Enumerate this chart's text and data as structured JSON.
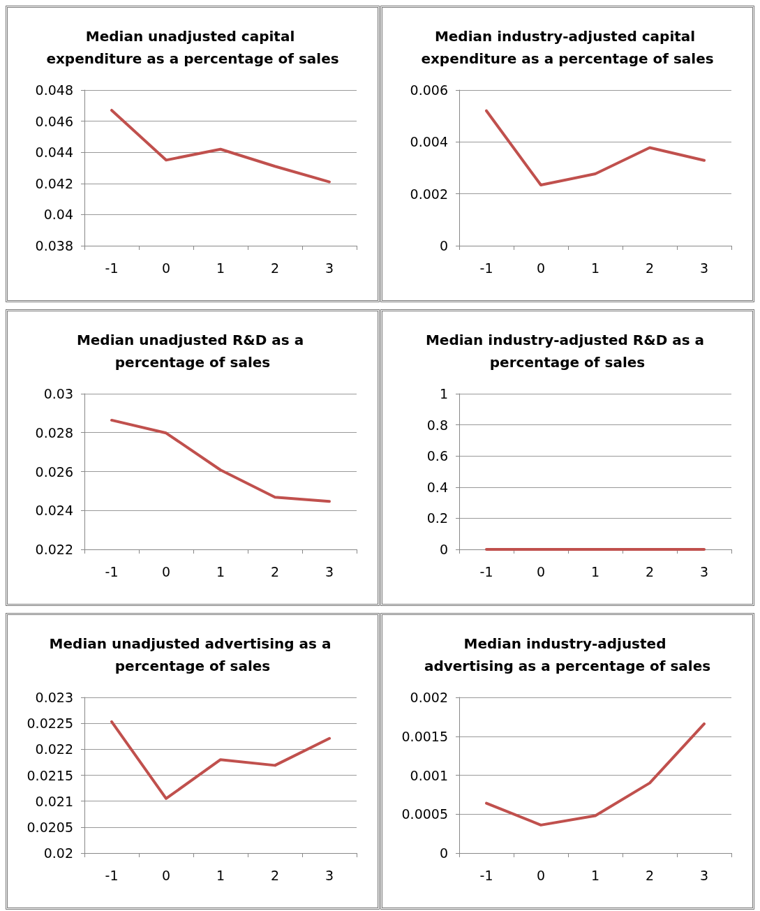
{
  "chart_data": [
    {
      "type": "line",
      "title": "Median unadjusted capital expenditure as a percentage of sales",
      "categories": [
        "-1",
        "0",
        "1",
        "2",
        "3"
      ],
      "series": [
        {
          "color": "#c0504d",
          "values": [
            0.0467,
            0.0435,
            0.0442,
            0.0431,
            0.0421
          ]
        }
      ],
      "ylim": [
        0.038,
        0.048
      ],
      "yticks": [
        0.038,
        0.04,
        0.042,
        0.044,
        0.046,
        0.048
      ],
      "grid": "y",
      "marker": "none",
      "line_style": "solid"
    },
    {
      "type": "line",
      "title": "Median industry-adjusted capital expenditure as a percentage of sales",
      "categories": [
        "-1",
        "0",
        "1",
        "2",
        "3"
      ],
      "series": [
        {
          "color": "#c0504d",
          "values": [
            0.0052,
            0.00234,
            0.00277,
            0.00378,
            0.00329
          ]
        }
      ],
      "ylim": [
        0,
        0.006
      ],
      "yticks": [
        0,
        0.002,
        0.004,
        0.006
      ],
      "grid": "y",
      "marker": "none",
      "line_style": "solid"
    },
    {
      "type": "line",
      "title": "Median unadjusted R&D as a percentage of sales",
      "categories": [
        "-1",
        "0",
        "1",
        "2",
        "3"
      ],
      "series": [
        {
          "color": "#c0504d",
          "values": [
            0.02864,
            0.02798,
            0.02608,
            0.02468,
            0.02447
          ]
        }
      ],
      "ylim": [
        0.022,
        0.03
      ],
      "yticks": [
        0.022,
        0.024,
        0.026,
        0.028,
        0.03
      ],
      "grid": "y",
      "marker": "none",
      "line_style": "solid"
    },
    {
      "type": "line",
      "title": "Median industry-adjusted R&D as a percentage of sales",
      "categories": [
        "-1",
        "0",
        "1",
        "2",
        "3"
      ],
      "series": [
        {
          "color": "#c0504d",
          "values": [
            0,
            0,
            0,
            0,
            0
          ]
        }
      ],
      "ylim": [
        0,
        1
      ],
      "yticks": [
        0,
        0.2,
        0.4,
        0.6,
        0.8,
        1
      ],
      "grid": "y",
      "marker": "none",
      "line_style": "solid"
    },
    {
      "type": "line",
      "title": "Median unadjusted advertising as a percentage of sales",
      "categories": [
        "-1",
        "0",
        "1",
        "2",
        "3"
      ],
      "series": [
        {
          "color": "#c0504d",
          "values": [
            0.02253,
            0.02105,
            0.0218,
            0.02169,
            0.02221
          ]
        }
      ],
      "ylim": [
        0.02,
        0.023
      ],
      "yticks": [
        0.02,
        0.0205,
        0.021,
        0.0215,
        0.022,
        0.0225,
        0.023
      ],
      "grid": "y",
      "marker": "none",
      "line_style": "solid"
    },
    {
      "type": "line",
      "title": "Median industry-adjusted advertising as a percentage of sales",
      "categories": [
        "-1",
        "0",
        "1",
        "2",
        "3"
      ],
      "series": [
        {
          "color": "#c0504d",
          "values": [
            0.00064,
            0.00036,
            0.00048,
            0.0009,
            0.00166
          ]
        }
      ],
      "ylim": [
        0,
        0.002
      ],
      "yticks": [
        0,
        0.0005,
        0.001,
        0.0015,
        0.002
      ],
      "grid": "y",
      "marker": "none",
      "line_style": "solid"
    }
  ]
}
